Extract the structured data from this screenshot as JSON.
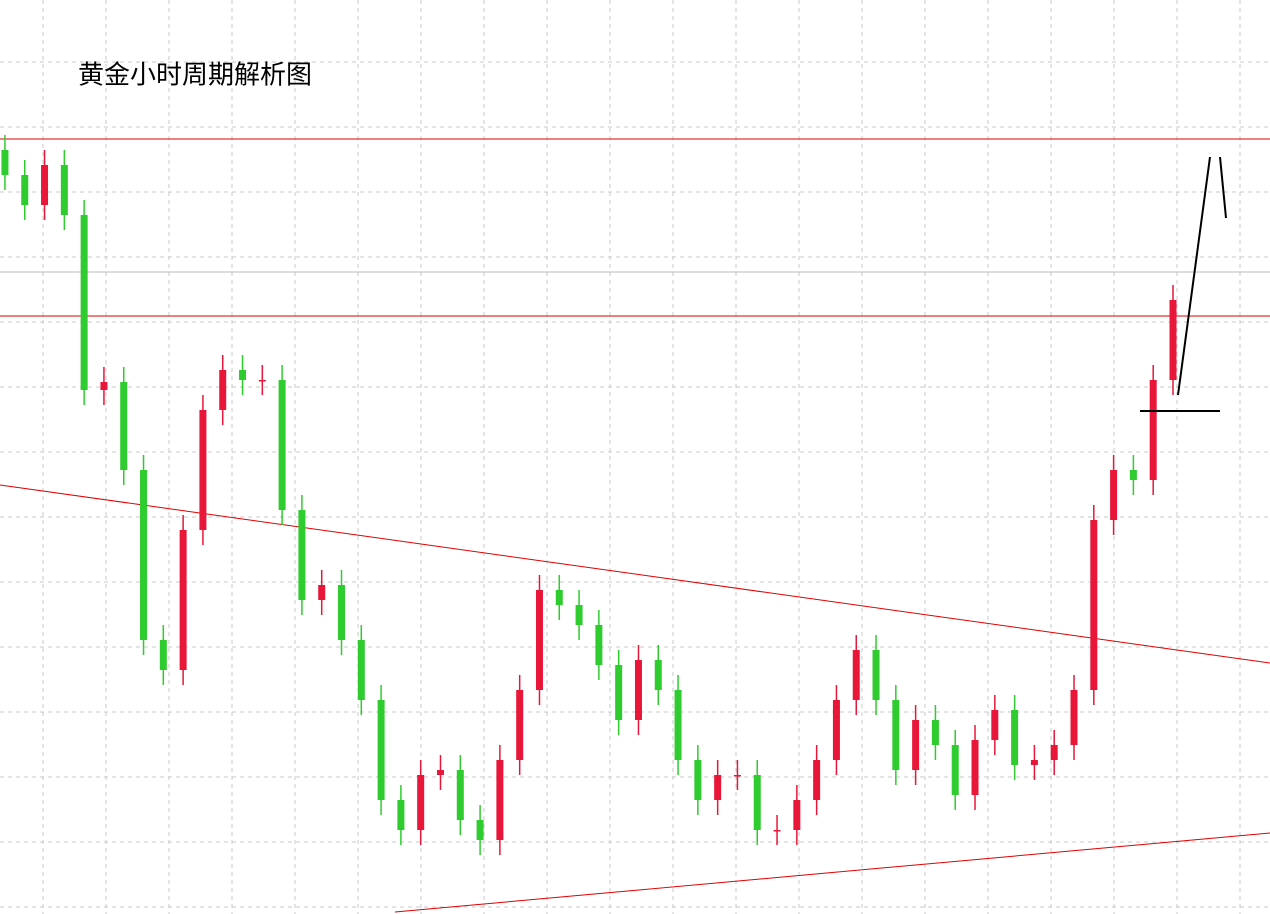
{
  "chart_data": {
    "type": "candlestick",
    "title": "黄金小时周期解析图",
    "x": [
      0,
      1,
      2,
      3,
      4,
      5,
      6,
      7,
      8,
      9,
      10,
      11,
      12,
      13,
      14,
      15,
      16,
      17,
      18,
      19,
      20,
      21,
      22,
      23,
      24,
      25,
      26,
      27,
      28,
      29,
      30,
      31,
      32,
      33,
      34,
      35,
      36,
      37,
      38,
      39,
      40,
      41,
      42,
      43,
      44,
      45,
      46,
      47,
      48,
      49,
      50,
      51,
      52,
      53,
      54,
      55,
      56,
      57,
      58,
      59
    ],
    "xlim": [
      -0.25,
      63.9
    ],
    "ylim": [
      0,
      914
    ],
    "open": [
      764,
      739,
      709,
      749,
      699,
      524,
      532,
      444,
      274,
      244,
      384,
      504,
      544,
      534,
      534,
      404,
      314,
      329,
      274,
      214,
      114,
      84,
      139,
      144,
      94,
      74,
      154,
      224,
      324,
      309,
      289,
      249,
      194,
      254,
      224,
      154,
      114,
      139,
      139,
      84,
      84,
      114,
      154,
      214,
      264,
      214,
      144,
      194,
      169,
      119,
      174,
      204,
      149,
      154,
      169,
      224,
      394,
      444,
      434,
      534
    ],
    "high": [
      779,
      754,
      764,
      764,
      714,
      547,
      547,
      459,
      289,
      399,
      519,
      559,
      559,
      549,
      549,
      419,
      344,
      344,
      289,
      229,
      129,
      154,
      159,
      159,
      109,
      169,
      239,
      339,
      339,
      324,
      304,
      264,
      269,
      269,
      239,
      169,
      154,
      154,
      154,
      99,
      129,
      169,
      229,
      279,
      279,
      229,
      209,
      209,
      184,
      189,
      219,
      219,
      169,
      184,
      239,
      409,
      459,
      459,
      549,
      629
    ],
    "low": [
      724,
      694,
      694,
      684,
      509,
      509,
      429,
      259,
      229,
      229,
      369,
      489,
      519,
      519,
      389,
      299,
      299,
      259,
      199,
      99,
      69,
      69,
      124,
      79,
      59,
      59,
      139,
      209,
      294,
      274,
      234,
      179,
      179,
      209,
      139,
      99,
      99,
      124,
      69,
      69,
      69,
      99,
      139,
      199,
      199,
      129,
      129,
      154,
      104,
      104,
      159,
      134,
      134,
      139,
      154,
      209,
      379,
      419,
      419,
      519
    ],
    "close": [
      739,
      709,
      749,
      699,
      524,
      532,
      444,
      274,
      244,
      384,
      504,
      544,
      534,
      534,
      404,
      314,
      329,
      274,
      214,
      114,
      84,
      139,
      144,
      94,
      74,
      154,
      224,
      324,
      309,
      289,
      249,
      194,
      254,
      224,
      154,
      114,
      139,
      139,
      84,
      84,
      114,
      154,
      214,
      264,
      214,
      144,
      194,
      169,
      119,
      174,
      204,
      149,
      154,
      169,
      224,
      394,
      444,
      434,
      534,
      614
    ],
    "up_color": "#e8173a",
    "down_color": "#2ecc2e",
    "levels": [
      775,
      598
    ],
    "level_color": "#e00000",
    "grid": true
  }
}
